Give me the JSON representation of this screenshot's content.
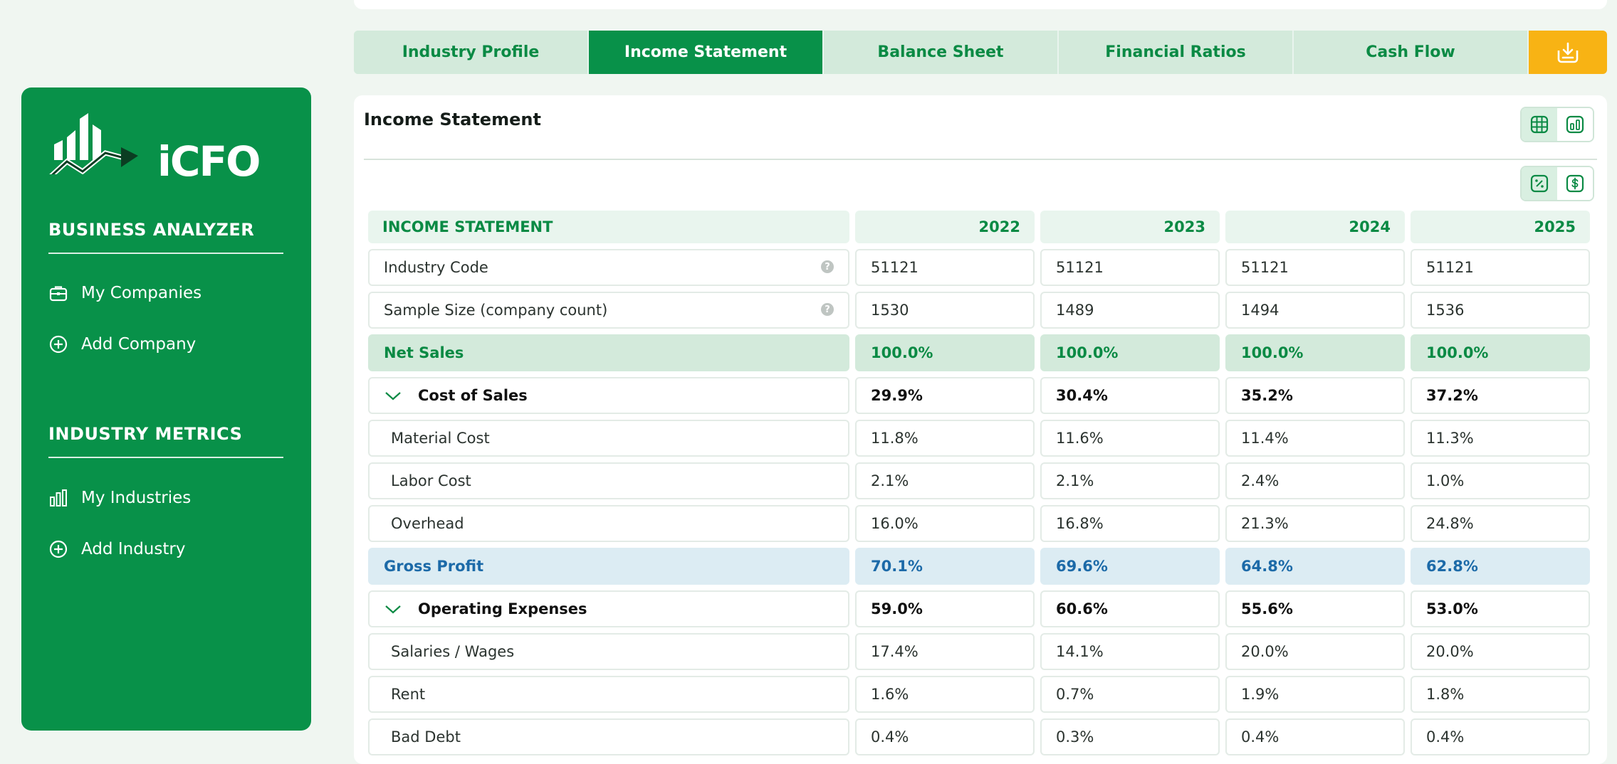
{
  "brand": {
    "logo_text": "iCFO"
  },
  "sidebar": {
    "business_analyzer": {
      "title": "BUSINESS ANALYZER",
      "items": [
        {
          "label": "My Companies",
          "icon": "briefcase-icon"
        },
        {
          "label": "Add Company",
          "icon": "plus-circle-icon"
        }
      ]
    },
    "industry_metrics": {
      "title": "INDUSTRY METRICS",
      "items": [
        {
          "label": "My Industries",
          "icon": "bar-chart-icon"
        },
        {
          "label": "Add Industry",
          "icon": "plus-circle-icon"
        }
      ]
    }
  },
  "tabs": [
    {
      "label": "Industry Profile",
      "active": false
    },
    {
      "label": "Income Statement",
      "active": true
    },
    {
      "label": "Balance Sheet",
      "active": false
    },
    {
      "label": "Financial Ratios",
      "active": false
    },
    {
      "label": "Cash Flow",
      "active": false
    }
  ],
  "panel": {
    "title": "Income Statement"
  },
  "table": {
    "header": {
      "label": "INCOME STATEMENT",
      "years": [
        "2022",
        "2023",
        "2024",
        "2025"
      ]
    },
    "rows": [
      {
        "label": "Industry Code",
        "values": [
          "51121",
          "51121",
          "51121",
          "51121"
        ]
      },
      {
        "label": "Sample Size (company count)",
        "values": [
          "1530",
          "1489",
          "1494",
          "1536"
        ]
      },
      {
        "label": "Net Sales",
        "values": [
          "100.0%",
          "100.0%",
          "100.0%",
          "100.0%"
        ]
      },
      {
        "label": "Cost of Sales",
        "values": [
          "29.9%",
          "30.4%",
          "35.2%",
          "37.2%"
        ]
      },
      {
        "label": "Material Cost",
        "values": [
          "11.8%",
          "11.6%",
          "11.4%",
          "11.3%"
        ]
      },
      {
        "label": "Labor Cost",
        "values": [
          "2.1%",
          "2.1%",
          "2.4%",
          "1.0%"
        ]
      },
      {
        "label": "Overhead",
        "values": [
          "16.0%",
          "16.8%",
          "21.3%",
          "24.8%"
        ]
      },
      {
        "label": "Gross Profit",
        "values": [
          "70.1%",
          "69.6%",
          "64.8%",
          "62.8%"
        ]
      },
      {
        "label": "Operating Expenses",
        "values": [
          "59.0%",
          "60.6%",
          "55.6%",
          "53.0%"
        ]
      },
      {
        "label": "Salaries / Wages",
        "values": [
          "17.4%",
          "14.1%",
          "20.0%",
          "20.0%"
        ]
      },
      {
        "label": "Rent",
        "values": [
          "1.6%",
          "0.7%",
          "1.9%",
          "1.8%"
        ]
      },
      {
        "label": "Bad Debt",
        "values": [
          "0.4%",
          "0.3%",
          "0.4%",
          "0.4%"
        ]
      }
    ]
  },
  "colors": {
    "primary": "#089149",
    "accent": "#f8b314",
    "tab_bg": "#d3eadb",
    "gross_profit": "#1c6aa8"
  }
}
